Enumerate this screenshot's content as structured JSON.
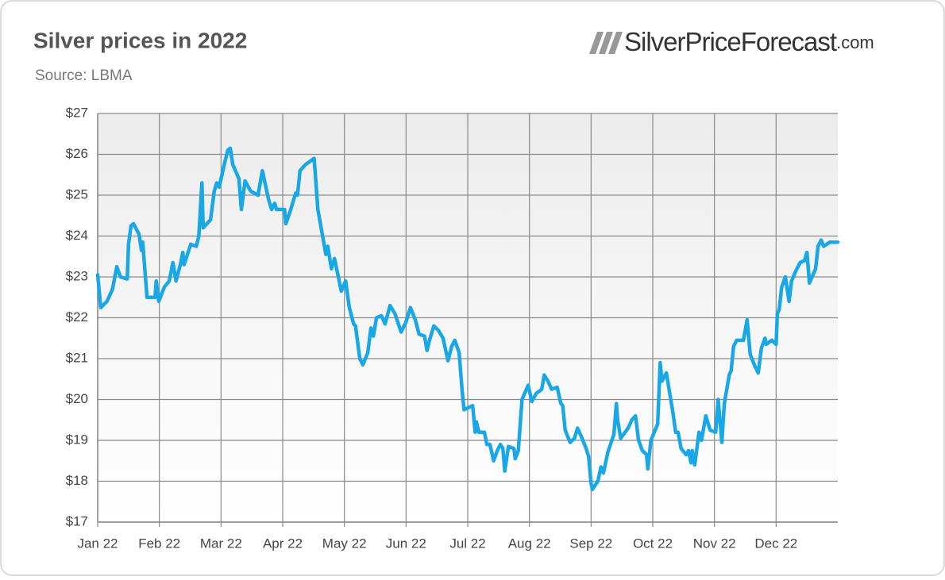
{
  "chart_data": {
    "type": "line",
    "title": "Silver prices in 2022",
    "subtitle": "Source: LBMA",
    "brand": "SilverPriceForecast",
    "brand_suffix": ".com",
    "xlim": [
      0,
      12
    ],
    "xticks": [
      {
        "value": 0,
        "label": "Jan 22"
      },
      {
        "value": 1,
        "label": "Feb 22"
      },
      {
        "value": 2,
        "label": "Mar 22"
      },
      {
        "value": 3,
        "label": "Apr 22"
      },
      {
        "value": 4,
        "label": "May 22"
      },
      {
        "value": 5,
        "label": "Jun 22"
      },
      {
        "value": 6,
        "label": "Jul 22"
      },
      {
        "value": 7,
        "label": "Aug 22"
      },
      {
        "value": 8,
        "label": "Sep 22"
      },
      {
        "value": 9,
        "label": "Oct 22"
      },
      {
        "value": 10,
        "label": "Nov 22"
      },
      {
        "value": 11,
        "label": "Dec 22"
      }
    ],
    "ylim": [
      17,
      27
    ],
    "yticks": [
      {
        "value": 17,
        "label": "$17"
      },
      {
        "value": 18,
        "label": "$18"
      },
      {
        "value": 19,
        "label": "$19"
      },
      {
        "value": 20,
        "label": "$20"
      },
      {
        "value": 21,
        "label": "$21"
      },
      {
        "value": 22,
        "label": "$22"
      },
      {
        "value": 23,
        "label": "$23"
      },
      {
        "value": 24,
        "label": "$24"
      },
      {
        "value": 25,
        "label": "$25"
      },
      {
        "value": 26,
        "label": "$26"
      },
      {
        "value": 27,
        "label": "$27"
      }
    ],
    "grid": true,
    "color": "#1aa7e6",
    "x": [
      0,
      0.05,
      0.15,
      0.24,
      0.31,
      0.37,
      0.48,
      0.5,
      0.54,
      0.58,
      0.67,
      0.71,
      0.73,
      0.8,
      0.93,
      0.95,
      0.99,
      1.08,
      1.16,
      1.22,
      1.27,
      1.34,
      1.38,
      1.4,
      1.51,
      1.6,
      1.64,
      1.69,
      1.71,
      1.83,
      1.89,
      1.93,
      1.97,
      2.06,
      2.11,
      2.15,
      2.19,
      2.29,
      2.33,
      2.39,
      2.48,
      2.6,
      2.67,
      2.77,
      2.82,
      2.87,
      2.9,
      3.03,
      3.05,
      3.12,
      3.21,
      3.24,
      3.28,
      3.37,
      3.51,
      3.57,
      3.7,
      3.73,
      3.79,
      3.84,
      3.95,
      4.02,
      4.08,
      4.15,
      4.18,
      4.25,
      4.3,
      4.38,
      4.43,
      4.47,
      4.52,
      4.6,
      4.66,
      4.74,
      4.82,
      4.92,
      5,
      5.07,
      5.15,
      5.21,
      5.3,
      5.34,
      5.38,
      5.45,
      5.52,
      5.6,
      5.68,
      5.74,
      5.79,
      5.86,
      5.91,
      5.94,
      6.01,
      6.08,
      6.12,
      6.14,
      6.18,
      6.27,
      6.31,
      6.36,
      6.42,
      6.48,
      6.53,
      6.57,
      6.6,
      6.66,
      6.75,
      6.77,
      6.82,
      6.88,
      6.98,
      7.04,
      7.11,
      7.2,
      7.24,
      7.3,
      7.36,
      7.45,
      7.51,
      7.54,
      7.58,
      7.66,
      7.73,
      7.78,
      7.84,
      7.92,
      7.96,
      8,
      8.02,
      8.11,
      8.16,
      8.2,
      8.27,
      8.37,
      8.41,
      8.43,
      8.48,
      8.6,
      8.66,
      8.72,
      8.77,
      8.83,
      8.9,
      8.92,
      8.97,
      9.08,
      9.12,
      9.15,
      9.22,
      9.33,
      9.37,
      9.41,
      9.46,
      9.54,
      9.58,
      9.62,
      9.64,
      9.68,
      9.75,
      9.79,
      9.86,
      9.93,
      10.02,
      10.06,
      10.12,
      10.16,
      10.24,
      10.27,
      10.31,
      10.36,
      10.47,
      10.53,
      10.58,
      10.66,
      10.71,
      10.76,
      10.82,
      10.84,
      10.93,
      11,
      11.02,
      11.05,
      11.09,
      11.15,
      11.21,
      11.25,
      11.32,
      11.39,
      11.46,
      11.5,
      11.54,
      11.64,
      11.68,
      11.73,
      11.77,
      11.87,
      12
    ],
    "values": [
      23.05,
      22.25,
      22.4,
      22.7,
      23.25,
      23,
      22.95,
      23.8,
      24.25,
      24.3,
      24.05,
      23.65,
      23.85,
      22.5,
      22.5,
      22.9,
      22.4,
      22.75,
      22.9,
      23.35,
      22.9,
      23.3,
      23.6,
      23.3,
      23.8,
      23.75,
      24,
      25.3,
      24.2,
      24.4,
      25.1,
      25.3,
      25.2,
      25.8,
      26.1,
      26.15,
      25.75,
      25.4,
      24.65,
      25.35,
      25.1,
      25,
      25.6,
      24.9,
      24.65,
      24.8,
      24.65,
      24.65,
      24.3,
      24.6,
      25.05,
      25,
      25.6,
      25.75,
      25.9,
      24.65,
      23.55,
      23.75,
      23.2,
      23.45,
      22.65,
      22.9,
      22.25,
      21.85,
      21.8,
      21,
      20.85,
      21.15,
      21.75,
      21.55,
      22,
      22.05,
      21.85,
      22.3,
      22.1,
      21.65,
      21.9,
      22.25,
      21.95,
      21.6,
      21.55,
      21.2,
      21.45,
      21.8,
      21.7,
      21.5,
      20.95,
      21.3,
      21.45,
      21.15,
      20.2,
      19.75,
      19.8,
      19.85,
      19.2,
      19.45,
      19.2,
      19.2,
      18.9,
      18.9,
      18.5,
      18.75,
      18.9,
      18.8,
      18.25,
      18.85,
      18.8,
      18.55,
      18.75,
      20,
      20.35,
      19.95,
      20.15,
      20.25,
      20.6,
      20.45,
      20.25,
      20.3,
      19.9,
      19.85,
      19.25,
      18.95,
      19.05,
      19.3,
      19.1,
      18.8,
      18.6,
      17.95,
      17.8,
      18,
      18.35,
      18.2,
      18.7,
      19.15,
      19.9,
      19.5,
      19.05,
      19.3,
      19.5,
      19.6,
      19,
      18.75,
      18.65,
      18.3,
      19,
      19.4,
      20.9,
      20.45,
      20.65,
      19.65,
      19.2,
      19.2,
      18.8,
      18.65,
      18.75,
      18.45,
      18.75,
      18.4,
      19.2,
      19,
      19.6,
      19.25,
      19.2,
      20,
      18.95,
      19.9,
      20.6,
      20.7,
      21.3,
      21.45,
      21.45,
      21.95,
      21.1,
      20.8,
      20.65,
      21.25,
      21.5,
      21.35,
      21.45,
      21.35,
      22.1,
      22.2,
      22.75,
      23,
      22.4,
      22.9,
      23.15,
      23.35,
      23.4,
      23.6,
      22.85,
      23.2,
      23.75,
      23.9,
      23.75,
      23.85,
      23.85
    ]
  }
}
